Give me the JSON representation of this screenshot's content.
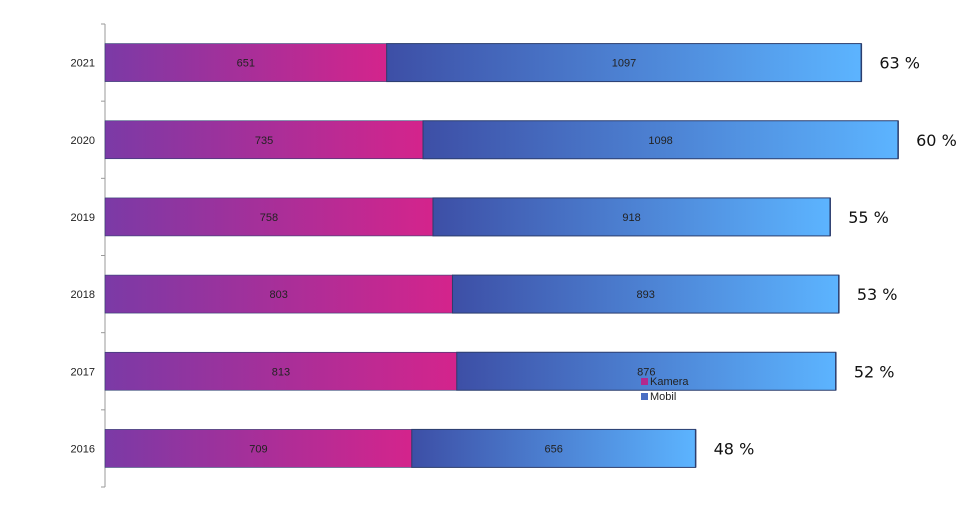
{
  "chart_data": {
    "type": "bar",
    "orientation": "horizontal",
    "stacked": true,
    "categories": [
      "2021",
      "2020",
      "2019",
      "2018",
      "2017",
      "2016"
    ],
    "series": [
      {
        "name": "Kamera",
        "values": [
          651,
          735,
          758,
          803,
          813,
          709
        ]
      },
      {
        "name": "Mobil",
        "values": [
          1097,
          1098,
          918,
          893,
          876,
          656
        ]
      }
    ],
    "annotations": [
      "63 %",
      "60 %",
      "55 %",
      "53 %",
      "52 %",
      "48 %"
    ],
    "xlim": [
      0,
      2080
    ],
    "grid": false,
    "legend_position": "right",
    "colors": {
      "kamera_start": "#7b3aa6",
      "kamera_end": "#d4248c",
      "mobil_start": "#3d4fa6",
      "mobil_end": "#5cb4ff",
      "edge": "#2c3e6e",
      "legend_kamera": "#b12a8e",
      "legend_mobil": "#4a6fc4"
    }
  }
}
